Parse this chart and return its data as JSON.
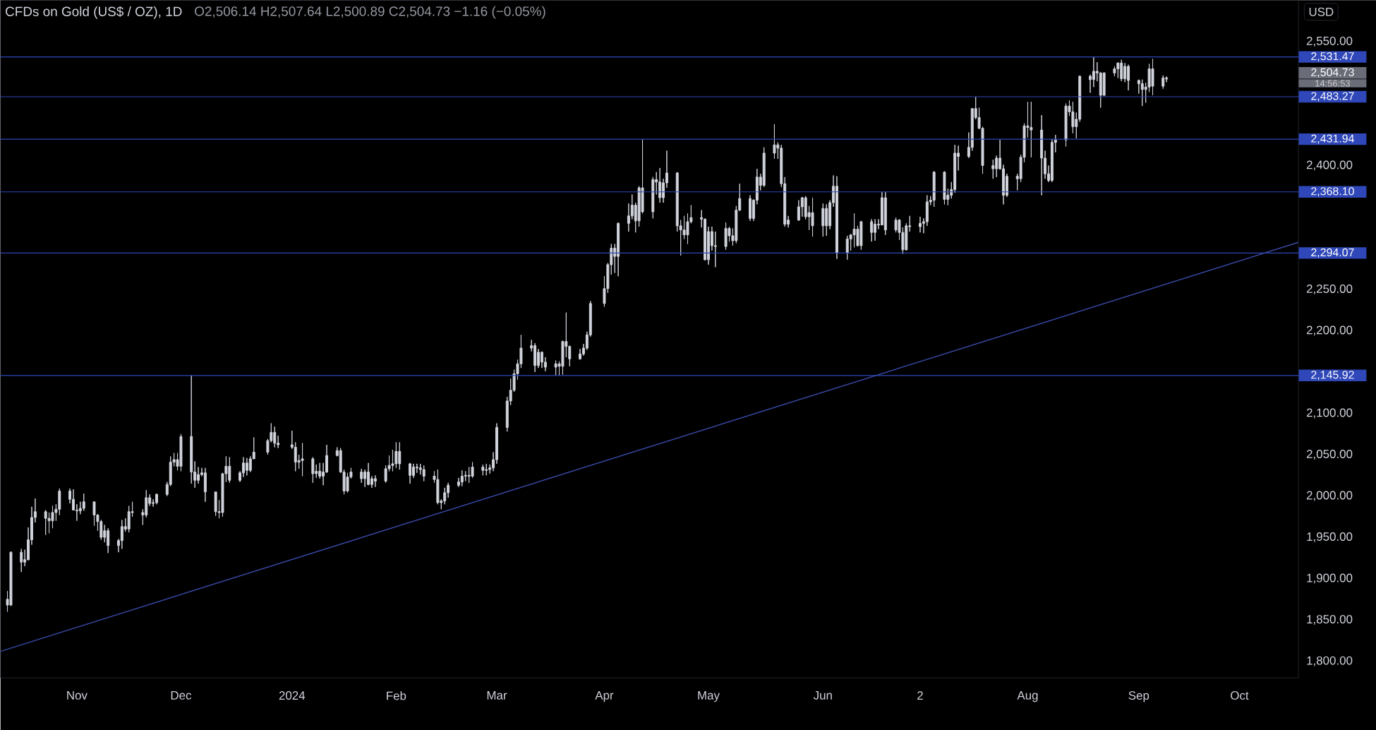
{
  "chart_data": {
    "type": "candlestick",
    "title": "CFDs on Gold (US$ / OZ), 1D",
    "subtitle": "O2,506.14 H2,507.64 L2,500.89 C2,504.73 −1.16 (−0.05%)",
    "ylabel": "USD",
    "color": "#d1d4dc",
    "x": [
      "2023-10-12",
      "2023-10-13",
      "2023-10-16",
      "2023-10-17",
      "2023-10-18",
      "2023-10-19",
      "2023-10-20",
      "2023-10-23",
      "2023-10-24",
      "2023-10-25",
      "2023-10-26",
      "2023-10-27",
      "2023-10-30",
      "2023-10-31",
      "2023-11-01",
      "2023-11-02",
      "2023-11-03",
      "2023-11-06",
      "2023-11-07",
      "2023-11-08",
      "2023-11-09",
      "2023-11-10",
      "2023-11-13",
      "2023-11-14",
      "2023-11-15",
      "2023-11-16",
      "2023-11-17",
      "2023-11-20",
      "2023-11-21",
      "2023-11-22",
      "2023-11-23",
      "2023-11-24",
      "2023-11-27",
      "2023-11-28",
      "2023-11-29",
      "2023-11-30",
      "2023-12-01",
      "2023-12-04",
      "2023-12-05",
      "2023-12-06",
      "2023-12-07",
      "2023-12-08",
      "2023-12-11",
      "2023-12-12",
      "2023-12-13",
      "2023-12-14",
      "2023-12-15",
      "2023-12-18",
      "2023-12-19",
      "2023-12-20",
      "2023-12-21",
      "2023-12-22",
      "2023-12-26",
      "2023-12-27",
      "2023-12-28",
      "2023-12-29",
      "2024-01-02",
      "2024-01-03",
      "2024-01-04",
      "2024-01-05",
      "2024-01-08",
      "2024-01-09",
      "2024-01-10",
      "2024-01-11",
      "2024-01-12",
      "2024-01-15",
      "2024-01-16",
      "2024-01-17",
      "2024-01-18",
      "2024-01-19",
      "2024-01-22",
      "2024-01-23",
      "2024-01-24",
      "2024-01-25",
      "2024-01-26",
      "2024-01-29",
      "2024-01-30",
      "2024-01-31",
      "2024-02-01",
      "2024-02-02",
      "2024-02-05",
      "2024-02-06",
      "2024-02-07",
      "2024-02-08",
      "2024-02-09",
      "2024-02-12",
      "2024-02-13",
      "2024-02-14",
      "2024-02-15",
      "2024-02-16",
      "2024-02-19",
      "2024-02-20",
      "2024-02-21",
      "2024-02-22",
      "2024-02-23",
      "2024-02-26",
      "2024-02-27",
      "2024-02-28",
      "2024-02-29",
      "2024-03-01",
      "2024-03-04",
      "2024-03-05",
      "2024-03-06",
      "2024-03-07",
      "2024-03-08",
      "2024-03-11",
      "2024-03-12",
      "2024-03-13",
      "2024-03-14",
      "2024-03-15",
      "2024-03-18",
      "2024-03-19",
      "2024-03-20",
      "2024-03-21",
      "2024-03-22",
      "2024-03-25",
      "2024-03-26",
      "2024-03-27",
      "2024-03-28",
      "2024-04-01",
      "2024-04-02",
      "2024-04-03",
      "2024-04-04",
      "2024-04-05",
      "2024-04-08",
      "2024-04-09",
      "2024-04-10",
      "2024-04-11",
      "2024-04-12",
      "2024-04-15",
      "2024-04-16",
      "2024-04-17",
      "2024-04-18",
      "2024-04-19",
      "2024-04-22",
      "2024-04-23",
      "2024-04-24",
      "2024-04-25",
      "2024-04-26",
      "2024-04-29",
      "2024-04-30",
      "2024-05-01",
      "2024-05-02",
      "2024-05-03",
      "2024-05-06",
      "2024-05-07",
      "2024-05-08",
      "2024-05-09",
      "2024-05-10",
      "2024-05-13",
      "2024-05-14",
      "2024-05-15",
      "2024-05-16",
      "2024-05-17",
      "2024-05-20",
      "2024-05-21",
      "2024-05-22",
      "2024-05-23",
      "2024-05-24",
      "2024-05-27",
      "2024-05-28",
      "2024-05-29",
      "2024-05-30",
      "2024-05-31",
      "2024-06-03",
      "2024-06-04",
      "2024-06-05",
      "2024-06-06",
      "2024-06-07",
      "2024-06-10",
      "2024-06-11",
      "2024-06-12",
      "2024-06-13",
      "2024-06-14",
      "2024-06-17",
      "2024-06-18",
      "2024-06-19",
      "2024-06-20",
      "2024-06-21",
      "2024-06-24",
      "2024-06-25",
      "2024-06-26",
      "2024-06-27",
      "2024-06-28",
      "2024-07-01",
      "2024-07-02",
      "2024-07-03",
      "2024-07-04",
      "2024-07-05",
      "2024-07-08",
      "2024-07-09",
      "2024-07-10",
      "2024-07-11",
      "2024-07-12",
      "2024-07-15",
      "2024-07-16",
      "2024-07-17",
      "2024-07-18",
      "2024-07-19",
      "2024-07-22",
      "2024-07-23",
      "2024-07-24",
      "2024-07-25",
      "2024-07-26",
      "2024-07-29",
      "2024-07-30",
      "2024-07-31",
      "2024-08-01",
      "2024-08-02",
      "2024-08-05",
      "2024-08-06",
      "2024-08-07",
      "2024-08-08",
      "2024-08-09",
      "2024-08-12",
      "2024-08-13",
      "2024-08-14",
      "2024-08-15",
      "2024-08-16",
      "2024-08-19",
      "2024-08-20",
      "2024-08-21",
      "2024-08-22",
      "2024-08-23",
      "2024-08-26",
      "2024-08-27",
      "2024-08-28",
      "2024-08-29",
      "2024-08-30",
      "2024-09-02",
      "2024-09-03",
      "2024-09-04",
      "2024-09-05",
      "2024-09-06",
      "2024-09-09",
      "2024-09-10"
    ],
    "ohlc": [
      [
        1875,
        1885,
        1860,
        1868
      ],
      [
        1868,
        1933,
        1867,
        1932
      ],
      [
        1932,
        1936,
        1908,
        1920
      ],
      [
        1920,
        1935,
        1915,
        1923
      ],
      [
        1923,
        1962,
        1922,
        1947
      ],
      [
        1947,
        1987,
        1941,
        1974
      ],
      [
        1974,
        1997,
        1968,
        1981
      ],
      [
        1981,
        1983,
        1953,
        1973
      ],
      [
        1973,
        1980,
        1955,
        1970
      ],
      [
        1970,
        1988,
        1961,
        1980
      ],
      [
        1980,
        1990,
        1970,
        1984
      ],
      [
        1984,
        2009,
        1977,
        2006
      ],
      [
        2006,
        2009,
        1991,
        1996
      ],
      [
        1996,
        2008,
        1983,
        1983
      ],
      [
        1983,
        1990,
        1970,
        1982
      ],
      [
        1982,
        1993,
        1978,
        1985
      ],
      [
        1985,
        2003,
        1982,
        1993
      ],
      [
        1993,
        1993,
        1964,
        1977
      ],
      [
        1977,
        1978,
        1958,
        1969
      ],
      [
        1969,
        1971,
        1947,
        1950
      ],
      [
        1950,
        1965,
        1944,
        1958
      ],
      [
        1958,
        1961,
        1931,
        1940
      ],
      [
        1940,
        1948,
        1932,
        1946
      ],
      [
        1946,
        1971,
        1936,
        1963
      ],
      [
        1963,
        1973,
        1957,
        1960
      ],
      [
        1960,
        1988,
        1956,
        1981
      ],
      [
        1981,
        1993,
        1975,
        1980
      ],
      [
        1980,
        1984,
        1965,
        1977
      ],
      [
        1977,
        2007,
        1974,
        1998
      ],
      [
        1998,
        2002,
        1988,
        1991
      ],
      [
        1991,
        1996,
        1987,
        1992
      ],
      [
        1992,
        2003,
        1990,
        2002
      ],
      [
        2002,
        2017,
        2000,
        2014
      ],
      [
        2014,
        2048,
        2012,
        2041
      ],
      [
        2041,
        2052,
        2036,
        2044
      ],
      [
        2044,
        2052,
        2031,
        2036
      ],
      [
        2036,
        2075,
        2030,
        2072
      ],
      [
        2072,
        2145.92,
        2015,
        2029
      ],
      [
        2029,
        2042,
        2010,
        2019
      ],
      [
        2019,
        2035,
        2015,
        2026
      ],
      [
        2026,
        2034,
        2024,
        2028
      ],
      [
        2028,
        2034,
        1993,
        2005
      ],
      [
        2005,
        2005,
        1976,
        1981
      ],
      [
        1981,
        1995,
        1973,
        1980
      ],
      [
        1980,
        2028,
        1975,
        2027
      ],
      [
        2027,
        2048,
        2017,
        2036
      ],
      [
        2036,
        2047,
        2016,
        2019
      ],
      [
        2019,
        2030,
        2017,
        2028
      ],
      [
        2028,
        2047,
        2023,
        2040
      ],
      [
        2040,
        2046,
        2025,
        2031
      ],
      [
        2031,
        2048,
        2029,
        2045
      ],
      [
        2045,
        2071,
        2045,
        2053
      ],
      [
        2053,
        2069,
        2050,
        2067
      ],
      [
        2067,
        2088,
        2065,
        2077
      ],
      [
        2077,
        2084,
        2059,
        2064
      ],
      [
        2064,
        2073,
        2058,
        2062
      ],
      [
        2062,
        2079,
        2057,
        2059
      ],
      [
        2059,
        2065,
        2030,
        2041
      ],
      [
        2041,
        2050,
        2033,
        2043
      ],
      [
        2043,
        2064,
        2024,
        2045
      ],
      [
        2045,
        2047,
        2016,
        2027
      ],
      [
        2027,
        2038,
        2022,
        2030
      ],
      [
        2030,
        2040,
        2021,
        2024
      ],
      [
        2024,
        2040,
        2013,
        2029
      ],
      [
        2029,
        2062,
        2028,
        2049
      ],
      [
        2049,
        2059,
        2048,
        2055
      ],
      [
        2055,
        2058,
        2028,
        2029
      ],
      [
        2029,
        2032,
        2002,
        2006
      ],
      [
        2006,
        2028,
        2004,
        2023
      ],
      [
        2023,
        2034,
        2021,
        2029
      ],
      [
        2029,
        2033,
        2016,
        2021
      ],
      [
        2021,
        2032,
        2011,
        2029
      ],
      [
        2029,
        2040,
        2013,
        2014
      ],
      [
        2014,
        2024,
        2010,
        2021
      ],
      [
        2021,
        2025,
        2011,
        2018
      ],
      [
        2018,
        2037,
        2016,
        2033
      ],
      [
        2033,
        2049,
        2030,
        2037
      ],
      [
        2037,
        2056,
        2030,
        2039
      ],
      [
        2039,
        2065,
        2034,
        2054
      ],
      [
        2054,
        2065,
        2032,
        2039
      ],
      [
        2039,
        2040,
        2015,
        2025
      ],
      [
        2025,
        2039,
        2022,
        2035
      ],
      [
        2035,
        2039,
        2028,
        2034
      ],
      [
        2034,
        2039,
        2026,
        2032
      ],
      [
        2032,
        2037,
        2018,
        2024
      ],
      [
        2024,
        2030,
        2016,
        2020
      ],
      [
        2020,
        2032,
        1990,
        1992
      ],
      [
        1992,
        1996,
        1984,
        1994
      ],
      [
        1994,
        2010,
        1990,
        2004
      ],
      [
        2004,
        2016,
        1998,
        2013
      ],
      [
        2013,
        2022,
        2011,
        2017
      ],
      [
        2017,
        2031,
        2012,
        2024
      ],
      [
        2024,
        2030,
        2018,
        2025
      ],
      [
        2025,
        2035,
        2016,
        2024
      ],
      [
        2024,
        2041,
        2022,
        2035
      ],
      [
        2035,
        2038,
        2025,
        2031
      ],
      [
        2031,
        2039,
        2025,
        2032
      ],
      [
        2032,
        2038,
        2027,
        2034
      ],
      [
        2034,
        2053,
        2030,
        2044
      ],
      [
        2044,
        2088,
        2039,
        2083
      ],
      [
        2083,
        2120,
        2078,
        2115
      ],
      [
        2115,
        2142,
        2110,
        2128
      ],
      [
        2128,
        2153,
        2126,
        2148
      ],
      [
        2148,
        2165,
        2141,
        2160
      ],
      [
        2160,
        2195,
        2155,
        2179
      ],
      [
        2179,
        2189,
        2175,
        2182
      ],
      [
        2182,
        2185,
        2150,
        2158
      ],
      [
        2158,
        2178,
        2155,
        2174
      ],
      [
        2174,
        2175,
        2155,
        2162
      ],
      [
        2162,
        2168,
        2151,
        2156
      ],
      [
        2156,
        2164,
        2146,
        2160
      ],
      [
        2160,
        2163,
        2146,
        2157
      ],
      [
        2157,
        2188,
        2147,
        2187
      ],
      [
        2187,
        2222,
        2168,
        2181
      ],
      [
        2181,
        2182,
        2157,
        2166
      ],
      [
        2166,
        2178,
        2165,
        2172
      ],
      [
        2172,
        2184,
        2170,
        2179
      ],
      [
        2179,
        2199,
        2177,
        2195
      ],
      [
        2195,
        2236,
        2193,
        2233
      ],
      [
        2233,
        2266,
        2229,
        2251
      ],
      [
        2251,
        2282,
        2246,
        2280
      ],
      [
        2280,
        2305,
        2268,
        2300
      ],
      [
        2300,
        2305,
        2270,
        2290
      ],
      [
        2290,
        2331,
        2266,
        2330
      ],
      [
        2330,
        2354,
        2320,
        2339
      ],
      [
        2339,
        2365,
        2335,
        2352
      ],
      [
        2352,
        2355,
        2319,
        2333
      ],
      [
        2333,
        2375,
        2326,
        2373
      ],
      [
        2373,
        2431.94,
        2342,
        2344
      ],
      [
        2344,
        2386,
        2336,
        2383
      ],
      [
        2383,
        2392,
        2365,
        2380
      ],
      [
        2380,
        2397,
        2355,
        2361
      ],
      [
        2361,
        2384,
        2355,
        2379
      ],
      [
        2379,
        2418,
        2373,
        2391
      ],
      [
        2391,
        2392,
        2320,
        2327
      ],
      [
        2327,
        2334,
        2291,
        2322
      ],
      [
        2322,
        2339,
        2311,
        2316
      ],
      [
        2316,
        2342,
        2305,
        2332
      ],
      [
        2332,
        2352,
        2330,
        2337
      ],
      [
        2337,
        2346,
        2325,
        2335
      ],
      [
        2335,
        2336,
        2285,
        2286
      ],
      [
        2286,
        2326,
        2280,
        2320
      ],
      [
        2320,
        2326,
        2297,
        2303
      ],
      [
        2303,
        2320,
        2277,
        2302
      ],
      [
        2302,
        2331,
        2298,
        2324
      ],
      [
        2324,
        2326,
        2308,
        2315
      ],
      [
        2315,
        2324,
        2303,
        2309
      ],
      [
        2309,
        2351,
        2306,
        2346
      ],
      [
        2346,
        2378,
        2345,
        2360
      ],
      [
        2360,
        2364,
        2333,
        2336
      ],
      [
        2336,
        2359,
        2333,
        2358
      ],
      [
        2358,
        2396,
        2353,
        2386
      ],
      [
        2386,
        2390,
        2370,
        2376
      ],
      [
        2376,
        2422,
        2374,
        2415
      ],
      [
        2415,
        2450,
        2408,
        2425
      ],
      [
        2425,
        2428,
        2408,
        2421
      ],
      [
        2421,
        2425,
        2374,
        2378
      ],
      [
        2378,
        2386,
        2326,
        2329
      ],
      [
        2329,
        2339,
        2325,
        2334
      ],
      [
        2334,
        2358,
        2333,
        2350
      ],
      [
        2350,
        2362,
        2338,
        2361
      ],
      [
        2361,
        2363,
        2335,
        2338
      ],
      [
        2338,
        2351,
        2322,
        2343
      ],
      [
        2343,
        2361,
        2314,
        2327
      ],
      [
        2327,
        2354,
        2314,
        2348
      ],
      [
        2348,
        2353,
        2315,
        2327
      ],
      [
        2327,
        2358,
        2323,
        2355
      ],
      [
        2355,
        2388,
        2350,
        2375
      ],
      [
        2375,
        2387,
        2287,
        2294
      ],
      [
        2294,
        2315,
        2286,
        2311
      ],
      [
        2311,
        2317,
        2297,
        2316
      ],
      [
        2316,
        2342,
        2301,
        2323
      ],
      [
        2323,
        2327,
        2302,
        2303
      ],
      [
        2303,
        2333,
        2298,
        2332
      ],
      [
        2332,
        2335,
        2308,
        2319
      ],
      [
        2319,
        2335,
        2309,
        2329
      ],
      [
        2329,
        2335,
        2323,
        2328
      ],
      [
        2328,
        2368,
        2328,
        2361
      ],
      [
        2361,
        2368,
        2316,
        2322
      ],
      [
        2322,
        2337,
        2319,
        2334
      ],
      [
        2334,
        2335,
        2310,
        2319
      ],
      [
        2319,
        2325,
        2293,
        2298
      ],
      [
        2298,
        2330,
        2297,
        2327
      ],
      [
        2327,
        2339,
        2320,
        2326
      ],
      [
        2326,
        2338,
        2319,
        2330
      ],
      [
        2330,
        2336,
        2318,
        2332
      ],
      [
        2332,
        2364,
        2327,
        2356
      ],
      [
        2356,
        2363,
        2352,
        2358
      ],
      [
        2358,
        2393,
        2350,
        2392
      ],
      [
        2392,
        2393,
        2353,
        2359
      ],
      [
        2359,
        2372,
        2352,
        2364
      ],
      [
        2364,
        2380,
        2360,
        2371
      ],
      [
        2371,
        2425,
        2367,
        2415
      ],
      [
        2415,
        2424,
        2394,
        2411
      ],
      [
        2411,
        2440,
        2409,
        2422
      ],
      [
        2422,
        2469,
        2418,
        2469
      ],
      [
        2469,
        2483.27,
        2456,
        2458
      ],
      [
        2458,
        2470,
        2444,
        2445
      ],
      [
        2445,
        2447,
        2390,
        2400
      ],
      [
        2400,
        2407,
        2384,
        2396
      ],
      [
        2396,
        2412,
        2386,
        2409
      ],
      [
        2409,
        2431,
        2395,
        2396
      ],
      [
        2396,
        2401,
        2353,
        2364
      ],
      [
        2364,
        2390,
        2362,
        2387
      ],
      [
        2387,
        2390,
        2370,
        2384
      ],
      [
        2384,
        2413,
        2380,
        2410
      ],
      [
        2410,
        2451,
        2404,
        2448
      ],
      [
        2448,
        2477,
        2434,
        2446
      ],
      [
        2446,
        2477,
        2410,
        2443
      ],
      [
        2443,
        2461,
        2364,
        2409
      ],
      [
        2409,
        2418,
        2384,
        2390
      ],
      [
        2390,
        2400,
        2380,
        2382
      ],
      [
        2382,
        2432,
        2380,
        2428
      ],
      [
        2428,
        2437,
        2416,
        2431
      ],
      [
        2431,
        2475,
        2423,
        2472
      ],
      [
        2472,
        2479,
        2460,
        2465
      ],
      [
        2465,
        2477,
        2439,
        2447
      ],
      [
        2447,
        2464,
        2433,
        2456
      ],
      [
        2456,
        2509,
        2453,
        2508
      ],
      [
        2508,
        2510,
        2488,
        2504
      ],
      [
        2504,
        2531.47,
        2495,
        2514
      ],
      [
        2514,
        2525,
        2502,
        2512
      ],
      [
        2512,
        2513,
        2470,
        2485
      ],
      [
        2485,
        2513,
        2484,
        2512
      ],
      [
        2512,
        2520,
        2508,
        2517
      ],
      [
        2517,
        2525,
        2506,
        2524
      ],
      [
        2524,
        2528,
        2502,
        2505
      ],
      [
        2505,
        2524,
        2501,
        2520
      ],
      [
        2520,
        2522,
        2491,
        2503
      ],
      [
        2503,
        2504,
        2487,
        2499
      ],
      [
        2499,
        2504,
        2472,
        2492
      ],
      [
        2492,
        2500,
        2476,
        2495
      ],
      [
        2495,
        2523,
        2489,
        2517
      ],
      [
        2517,
        2529,
        2485,
        2496
      ],
      [
        2496,
        2509,
        2493,
        2506
      ],
      [
        2506.14,
        2507.64,
        2500.89,
        2504.73
      ]
    ],
    "series": [
      {
        "type": "line",
        "color": "#3a4aa8",
        "x": [
          "2023-10-10",
          "2024-10-18"
        ],
        "values": [
          1812,
          2307
        ]
      }
    ],
    "ref_lines": [
      {
        "axis": "y",
        "value": 2531.47,
        "label": "2,531.47",
        "color": "#2f47b8"
      },
      {
        "axis": "y",
        "value": 2483.27,
        "label": "2,483.27",
        "color": "#2f47b8"
      },
      {
        "axis": "y",
        "value": 2431.94,
        "label": "2,431.94",
        "color": "#2f47b8"
      },
      {
        "axis": "y",
        "value": 2368.1,
        "label": "2,368.10",
        "color": "#2f47b8"
      },
      {
        "axis": "y",
        "value": 2294.07,
        "label": "2,294.07",
        "color": "#2f47b8"
      },
      {
        "axis": "y",
        "value": 2145.92,
        "label": "2,145.92",
        "color": "#2f47b8"
      }
    ],
    "annotations": [
      "2,504.73",
      "14:56:53"
    ],
    "xlim": [
      "2023-10-10",
      "2024-10-18"
    ],
    "xticks": [
      {
        "value": "2023-11-01",
        "label": "Nov"
      },
      {
        "value": "2023-12-01",
        "label": "Dec"
      },
      {
        "value": "2024-01-02",
        "label": "2024"
      },
      {
        "value": "2024-02-01",
        "label": "Feb"
      },
      {
        "value": "2024-03-01",
        "label": "Mar"
      },
      {
        "value": "2024-04-01",
        "label": "Apr"
      },
      {
        "value": "2024-05-01",
        "label": "May"
      },
      {
        "value": "2024-06-03",
        "label": "Jun"
      },
      {
        "value": "2024-07-01",
        "label": "2"
      },
      {
        "value": "2024-08-01",
        "label": "Aug"
      },
      {
        "value": "2024-09-02",
        "label": "Sep"
      },
      {
        "value": "2024-10-01",
        "label": "Oct"
      }
    ],
    "ylim": [
      1780,
      2600
    ],
    "yticks": [
      {
        "value": 1800,
        "label": "1,800.00"
      },
      {
        "value": 1850,
        "label": "1,850.00"
      },
      {
        "value": 1900,
        "label": "1,900.00"
      },
      {
        "value": 1950,
        "label": "1,950.00"
      },
      {
        "value": 2000,
        "label": "2,000.00"
      },
      {
        "value": 2050,
        "label": "2,050.00"
      },
      {
        "value": 2100,
        "label": "2,100.00"
      },
      {
        "value": 2200,
        "label": "2,200.00"
      },
      {
        "value": 2250,
        "label": "2,250.00"
      },
      {
        "value": 2400,
        "label": "2,400.00"
      },
      {
        "value": 2550,
        "label": "2,550.00"
      }
    ]
  }
}
